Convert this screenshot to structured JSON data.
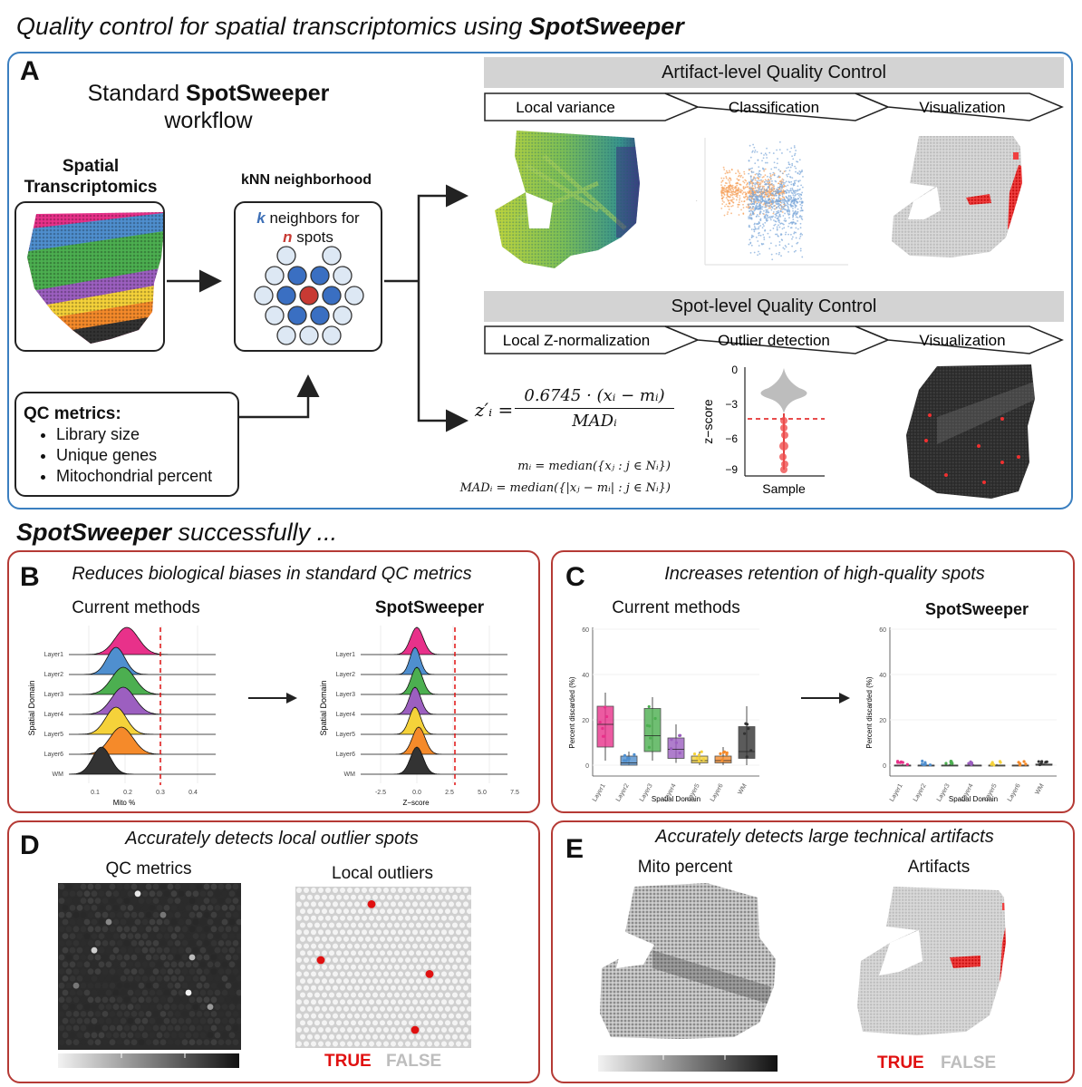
{
  "header": {
    "title_prefix": "Quality control for spatial transcriptomics using ",
    "title_bold": "SpotSweeper"
  },
  "panelA": {
    "letter": "A",
    "workflow_line1_prefix": "Standard ",
    "workflow_line1_bold": "SpotSweeper",
    "workflow_line2": "workflow",
    "spatial_title": "Spatial\nTranscriptomics",
    "knn_title": "kNN neighborhood",
    "knn_k": "k",
    "knn_line1_rest": " neighbors for",
    "knn_n": "n",
    "knn_line2_rest": " spots",
    "qc_title": "QC metrics:",
    "qc_items": [
      "Library size",
      "Unique genes",
      "Mitochondrial percent"
    ],
    "artifact_bar": "Artifact-level Quality Control",
    "artifact_steps": [
      "Local variance",
      "Classification",
      "Visualization"
    ],
    "spot_bar": "Spot-level Quality Control",
    "spot_steps": [
      "Local Z-normalization",
      "Outlier detection",
      "Visualization"
    ],
    "formula_lhs": "z′ᵢ =",
    "formula_num": "0.6745 · (xᵢ − mᵢ)",
    "formula_den": "MADᵢ",
    "formula_m": "mᵢ = median({xⱼ : j ∈ Nᵢ})",
    "formula_mad": "MADᵢ = median({|xⱼ − mᵢ| : j ∈ Nᵢ})",
    "violin_ylabel": "z−score",
    "violin_ticks": [
      "0",
      "−3",
      "−6",
      "−9"
    ],
    "violin_xlabel": "Sample"
  },
  "section2": {
    "bold": "SpotSweeper",
    "rest": " successfully ..."
  },
  "panelB": {
    "letter": "B",
    "title": "Reduces biological biases in standard QC metrics",
    "left_label": "Current methods",
    "right_label": "SpotSweeper",
    "ylabel": "Spatial Domain",
    "layers": [
      "Layer1",
      "Layer2",
      "Layer3",
      "Layer4",
      "Layer5",
      "Layer6",
      "WM"
    ],
    "left_xlabel": "Mito %",
    "left_ticks": [
      "0.1",
      "0.2",
      "0.3",
      "0.4"
    ],
    "right_xlabel": "Z−score",
    "right_ticks": [
      "-2.5",
      "0.0",
      "2.5",
      "5.0",
      "7.5"
    ]
  },
  "panelC": {
    "letter": "C",
    "title": "Increases retention of high-quality spots",
    "left_label": "Current methods",
    "right_label": "SpotSweeper",
    "ylabel": "Percent discarded (%)",
    "xlabel": "Spatial Domain",
    "yticks": [
      "0",
      "20",
      "40",
      "60"
    ],
    "layers": [
      "Layer1",
      "Layer2",
      "Layer3",
      "Layer4",
      "Layer5",
      "Layer6",
      "WM"
    ]
  },
  "panelD": {
    "letter": "D",
    "title": "Accurately detects local outlier spots",
    "left_label": "QC metrics",
    "right_label": "Local outliers",
    "legend_true": "TRUE",
    "legend_false": "FALSE"
  },
  "panelE": {
    "letter": "E",
    "title": "Accurately detects large technical artifacts",
    "left_label": "Mito percent",
    "right_label": "Artifacts",
    "legend_true": "TRUE",
    "legend_false": "FALSE"
  },
  "colors": {
    "layer1": "#e8318a",
    "layer2": "#4f8fcf",
    "layer3": "#4caf50",
    "layer4": "#9c5fc0",
    "layer5": "#f5d23a",
    "layer6": "#f58a2a",
    "wm": "#333333",
    "panelA_border": "#3b7fc0",
    "panel_border": "#b53a35",
    "outlier_red": "#e01010"
  }
}
